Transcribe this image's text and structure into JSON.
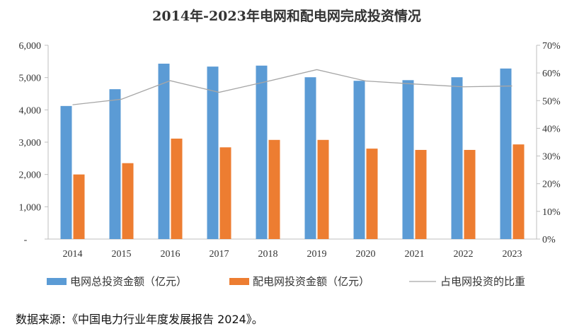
{
  "chart_data": {
    "type": "bar",
    "title": "2014年-2023年电网和配电网完成投资情况",
    "categories": [
      "2014",
      "2015",
      "2016",
      "2017",
      "2018",
      "2019",
      "2020",
      "2021",
      "2022",
      "2023"
    ],
    "series": [
      {
        "name": "电网总投资金额（亿元）",
        "type": "bar",
        "axis": "left",
        "color": "#5B9BD5",
        "values": [
          4120,
          4640,
          5430,
          5340,
          5370,
          5010,
          4900,
          4920,
          5010,
          5280
        ]
      },
      {
        "name": "配电网投资金额（亿元）",
        "type": "bar",
        "axis": "left",
        "color": "#ED7D31",
        "values": [
          2000,
          2350,
          3110,
          2840,
          3070,
          3070,
          2800,
          2760,
          2760,
          2930
        ]
      },
      {
        "name": "占电网投资的比重",
        "type": "line",
        "axis": "right",
        "color": "#A6A6A6",
        "values": [
          0.485,
          0.505,
          0.572,
          0.53,
          0.57,
          0.612,
          0.571,
          0.56,
          0.55,
          0.553
        ]
      }
    ],
    "left_axis": {
      "min": 0,
      "max": 6000,
      "ticks": [
        "-",
        "1,000",
        "2,000",
        "3,000",
        "4,000",
        "5,000",
        "6,000"
      ]
    },
    "right_axis": {
      "min": 0,
      "max": 0.7,
      "ticks": [
        "0%",
        "10%",
        "20%",
        "30%",
        "40%",
        "50%",
        "60%",
        "70%"
      ]
    },
    "xlabel": "",
    "ylabel": "",
    "grid": false,
    "legend": "bottom"
  },
  "source_text": "数据来源：《中国电力行业年度发展报告 2024》。"
}
